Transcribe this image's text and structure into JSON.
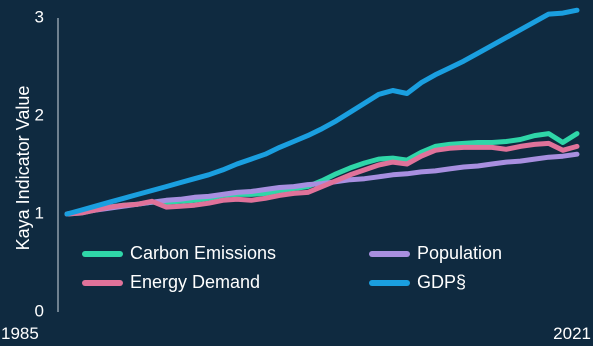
{
  "chart_data": {
    "type": "line",
    "title": "",
    "xlabel": "",
    "ylabel": "Kaya Indicator Value",
    "xlim": [
      1985,
      2021
    ],
    "ylim": [
      0,
      3
    ],
    "x_tick_labels": [
      "1985",
      "2021"
    ],
    "y_tick_labels": [
      "0",
      "1",
      "2",
      "3"
    ],
    "y_ticks": [
      0,
      1,
      2,
      3
    ],
    "grid": false,
    "legend": {
      "placement": "bottom-left",
      "columns": 2
    },
    "x": [
      1985,
      1986,
      1987,
      1988,
      1989,
      1990,
      1991,
      1992,
      1993,
      1994,
      1995,
      1996,
      1997,
      1998,
      1999,
      2000,
      2001,
      2002,
      2003,
      2004,
      2005,
      2006,
      2007,
      2008,
      2009,
      2010,
      2011,
      2012,
      2013,
      2014,
      2015,
      2016,
      2017,
      2018,
      2019,
      2020,
      2021
    ],
    "series": [
      {
        "name": "Carbon Emissions",
        "color": "#2fd6a8",
        "values": [
          1.0,
          1.01,
          1.04,
          1.07,
          1.09,
          1.1,
          1.12,
          1.12,
          1.13,
          1.14,
          1.16,
          1.19,
          1.2,
          1.2,
          1.21,
          1.24,
          1.26,
          1.28,
          1.34,
          1.41,
          1.47,
          1.52,
          1.56,
          1.57,
          1.55,
          1.63,
          1.69,
          1.71,
          1.72,
          1.73,
          1.73,
          1.74,
          1.76,
          1.8,
          1.82,
          1.73,
          1.82
        ]
      },
      {
        "name": "Population",
        "color": "#a88fe0",
        "values": [
          1.0,
          1.02,
          1.04,
          1.06,
          1.08,
          1.1,
          1.12,
          1.14,
          1.15,
          1.17,
          1.18,
          1.2,
          1.22,
          1.23,
          1.25,
          1.27,
          1.28,
          1.3,
          1.31,
          1.33,
          1.35,
          1.36,
          1.38,
          1.4,
          1.41,
          1.43,
          1.44,
          1.46,
          1.48,
          1.49,
          1.51,
          1.53,
          1.54,
          1.56,
          1.58,
          1.59,
          1.61
        ]
      },
      {
        "name": "Energy Demand",
        "color": "#e0729a",
        "values": [
          1.0,
          1.01,
          1.04,
          1.07,
          1.09,
          1.1,
          1.13,
          1.07,
          1.08,
          1.09,
          1.11,
          1.14,
          1.15,
          1.14,
          1.16,
          1.19,
          1.21,
          1.22,
          1.28,
          1.34,
          1.4,
          1.45,
          1.5,
          1.53,
          1.51,
          1.59,
          1.65,
          1.67,
          1.68,
          1.68,
          1.68,
          1.66,
          1.69,
          1.71,
          1.72,
          1.65,
          1.69
        ]
      },
      {
        "name": "GDP§",
        "color": "#1a9fe0",
        "values": [
          1.0,
          1.04,
          1.08,
          1.12,
          1.16,
          1.2,
          1.24,
          1.28,
          1.32,
          1.36,
          1.4,
          1.45,
          1.51,
          1.56,
          1.61,
          1.68,
          1.74,
          1.8,
          1.87,
          1.95,
          2.04,
          2.13,
          2.22,
          2.26,
          2.23,
          2.34,
          2.42,
          2.49,
          2.56,
          2.64,
          2.72,
          2.8,
          2.88,
          2.96,
          3.04,
          3.05,
          3.08
        ]
      }
    ]
  }
}
